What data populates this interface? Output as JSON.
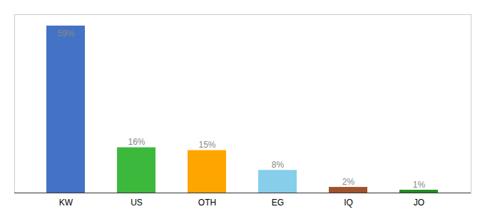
{
  "chart_data": {
    "type": "bar",
    "categories": [
      "KW",
      "US",
      "OTH",
      "EG",
      "IQ",
      "JO"
    ],
    "values": [
      59,
      16,
      15,
      8,
      2,
      1
    ],
    "value_labels": [
      "59%",
      "16%",
      "15%",
      "8%",
      "2%",
      "1%"
    ],
    "colors": [
      "#4472C4",
      "#3CB93C",
      "#FFA500",
      "#87CEEB",
      "#A0522D",
      "#228B22"
    ],
    "data_labels": true,
    "ylim": [
      0,
      63
    ],
    "tick_labels": "x",
    "grid": false
  }
}
